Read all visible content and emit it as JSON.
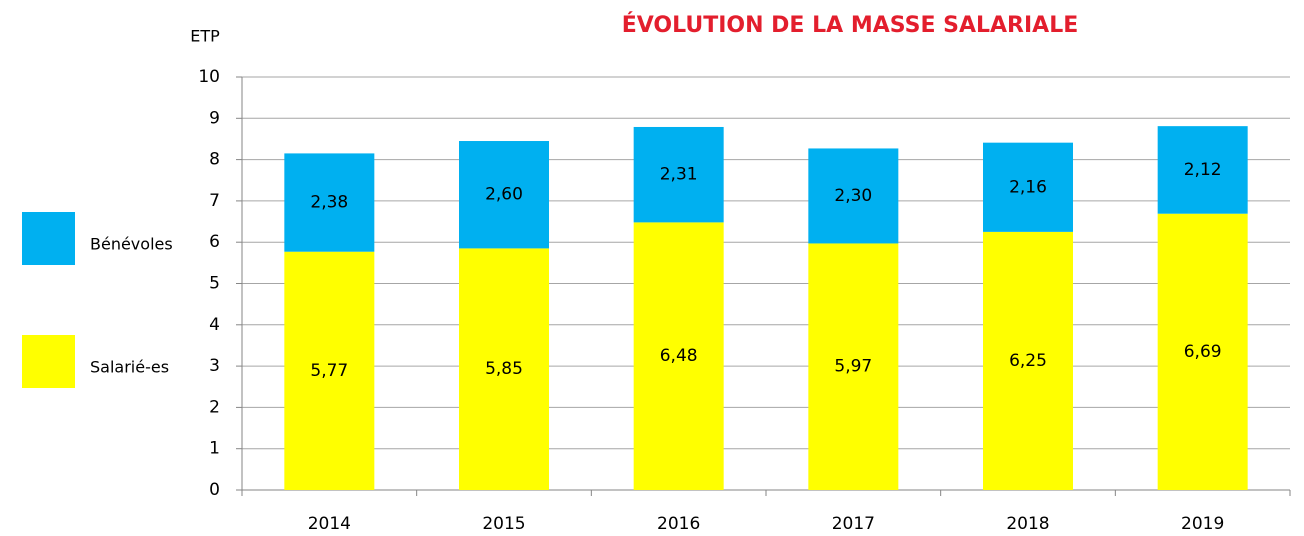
{
  "chart_data": {
    "type": "stacked_bar",
    "title": "ÉVOLUTION DE LA MASSE SALARIALE",
    "y_label": "ETP",
    "categories": [
      "2014",
      "2015",
      "2016",
      "2017",
      "2018",
      "2019"
    ],
    "series": [
      {
        "name": "Salarié-es",
        "color": "#ffff00",
        "values": [
          5.77,
          5.85,
          6.48,
          5.97,
          6.25,
          6.69
        ],
        "value_labels": [
          "5,77",
          "5,85",
          "6,48",
          "5,97",
          "6,25",
          "6,69"
        ]
      },
      {
        "name": "Bénévoles",
        "color": "#00b0f0",
        "values": [
          2.38,
          2.6,
          2.31,
          2.3,
          2.16,
          2.12
        ],
        "value_labels": [
          "2,38",
          "2,60",
          "2,31",
          "2,30",
          "2,16",
          "2,12"
        ]
      }
    ],
    "ylim": [
      0,
      10
    ],
    "yticks": [
      0,
      1,
      2,
      3,
      4,
      5,
      6,
      7,
      8,
      9,
      10
    ],
    "grid": true,
    "legend": "left"
  }
}
